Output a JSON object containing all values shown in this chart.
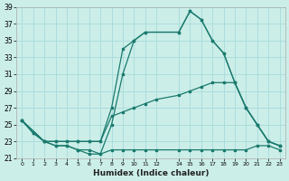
{
  "xlabel": "Humidex (Indice chaleur)",
  "bg_color": "#cceee8",
  "grid_color": "#aadddd",
  "line_color": "#1a7a6e",
  "xlim": [
    -0.5,
    23.5
  ],
  "ylim": [
    21,
    39
  ],
  "xticks": [
    0,
    1,
    2,
    3,
    4,
    5,
    6,
    7,
    8,
    9,
    10,
    11,
    12,
    14,
    15,
    16,
    17,
    18,
    19,
    20,
    21,
    22,
    23
  ],
  "yticks": [
    21,
    23,
    25,
    27,
    29,
    31,
    33,
    35,
    37,
    39
  ],
  "lines": [
    {
      "x": [
        0,
        1,
        2,
        3,
        4,
        5,
        6,
        7,
        8,
        9,
        10,
        11,
        14,
        15,
        16,
        17,
        18,
        19,
        20,
        21,
        22,
        23
      ],
      "y": [
        25.5,
        24,
        23,
        23,
        23,
        23,
        23,
        23,
        27,
        34,
        35,
        36,
        36,
        38.5,
        37.5,
        35,
        33.5,
        30,
        27,
        25,
        23,
        22.5
      ]
    },
    {
      "x": [
        0,
        1,
        2,
        3,
        4,
        5,
        6,
        7,
        8,
        9,
        10,
        11,
        14,
        15,
        16,
        17,
        18,
        19,
        20,
        21,
        22,
        23
      ],
      "y": [
        25.5,
        24,
        23,
        22.5,
        22.5,
        22,
        21.5,
        21.5,
        25,
        31,
        35,
        36,
        36,
        38.5,
        37.5,
        35,
        33.5,
        30,
        27,
        25,
        23,
        22.5
      ]
    },
    {
      "x": [
        0,
        2,
        3,
        4,
        5,
        6,
        7,
        8,
        9,
        10,
        11,
        12,
        14,
        15,
        16,
        17,
        18,
        19,
        20,
        21,
        22,
        23
      ],
      "y": [
        25.5,
        23,
        23,
        23,
        23,
        23,
        23,
        26,
        26.5,
        27,
        27.5,
        28,
        28.5,
        29,
        29.5,
        30,
        30,
        30,
        27,
        25,
        23,
        22.5
      ]
    },
    {
      "x": [
        0,
        2,
        3,
        4,
        5,
        6,
        7,
        8,
        9,
        10,
        11,
        12,
        14,
        15,
        16,
        17,
        18,
        19,
        20,
        21,
        22,
        23
      ],
      "y": [
        25.5,
        23,
        22.5,
        22.5,
        22,
        22,
        21.5,
        22,
        22,
        22,
        22,
        22,
        22,
        22,
        22,
        22,
        22,
        22,
        22,
        22.5,
        22.5,
        22
      ]
    }
  ]
}
